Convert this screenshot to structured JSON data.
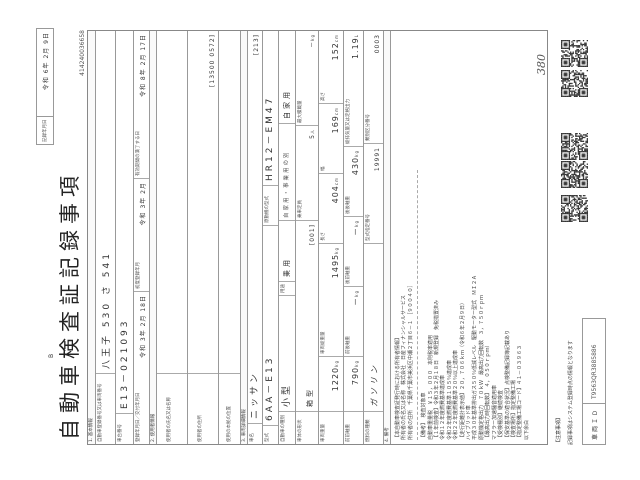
{
  "header": {
    "record_date_label": "記録年月日",
    "record_date": "令和 6年 2月 9日",
    "mark": "B",
    "title": "自動車検査証記録事項",
    "code": "414240036658"
  },
  "basic": {
    "section": "1. 基本情報",
    "reg_label": "自動車登録番号又は車両番号",
    "reg_value": "八王子 530 さ 541",
    "chassis_label": "車台番号",
    "chassis_value": "E13－021093",
    "reg_date_label": "登録年月日／交付年月日",
    "reg_date": "令和 3年 2月 18日",
    "first_reg_label": "初度登録年月",
    "first_reg": "令和 3年 2月",
    "expiry_label": "有効期間の満了する日",
    "expiry": "令和 8年 2月 17日"
  },
  "user": {
    "section": "2. 使用者情報",
    "name_label": "使用者の氏名又は名称",
    "address_label": "使用者の住所",
    "address_code": "[13500 0572]",
    "base_label": "使用の本拠の位置"
  },
  "vehicle": {
    "section": "3. 車両詳細情報",
    "maker_label": "車名",
    "maker": "ニッサン",
    "maker_code": "[213]",
    "model_label": "型式",
    "model": "6AA－E13",
    "engine_label": "原動機の型式",
    "engine": "HR12－EM47",
    "kind_label": "自動車の種別",
    "kind": "小型",
    "use_label": "用途",
    "use": "乗用",
    "private_label": "自家用・事業用の別",
    "private": "自家用",
    "body_label": "車体の形状",
    "body": "箱型",
    "body_code": "[001]",
    "capacity_label": "乗車定員",
    "capacity": "5",
    "capacity_unit": "人",
    "max_load_label": "最大積載量",
    "max_load": "－",
    "max_load_unit": "kg",
    "weight_label": "車両重量",
    "weight": "1220",
    "weight_unit": "kg",
    "gross_label": "車両総重量",
    "gross": "1495",
    "gross_unit": "kg",
    "length_label": "長さ",
    "length": "404",
    "length_unit": "cm",
    "width_label": "幅",
    "width": "169",
    "width_unit": "cm",
    "height_label": "高さ",
    "height": "152",
    "height_unit": "cm",
    "ff_axle_label": "前前軸重",
    "ff_axle": "790",
    "ff_axle_unit": "kg",
    "fr_axle_label": "前後軸重",
    "fr_axle": "－",
    "fr_axle_unit": "kg",
    "rf_axle_label": "後前軸重",
    "rf_axle": "－",
    "rf_axle_unit": "kg",
    "rr_axle_label": "後後軸重",
    "rr_axle": "430",
    "rr_axle_unit": "kg",
    "displacement_label": "総排気量又は定格出力",
    "displacement": "1.19",
    "displacement_unit": "L",
    "fuel_label": "燃料の種類",
    "fuel": "ガソリン",
    "type_no_label": "型式指定番号",
    "type_no": "19991",
    "class_no_label": "類別区分番号",
    "class_no": "0003"
  },
  "remarks": {
    "section": "4. 備考",
    "owner_lines": [
      "【本自動車検査証発行時における所有者情報】",
      "所有者の氏名又は名称　株式会社　日産フィナンシャルサービス",
      "所有者の住所　千葉県千葉市美浜区中瀬２丁目６－１　［９００４０］"
    ],
    "lines": [
      "【備考】　検査対象車",
      "自動車重量税　￥１５，０００　本則税率適用",
      "【１年前検査】令和３年２月１８日　新規登録　免税措置済み",
      "令和１２年度燃費基準達成車",
      "令和２年度燃費基準１０５％達成車",
      "令和２２年度燃費基準２０％以上達成車",
      "【走行距離計表示値】２０，７０６ｋｍ（令和６年２月９日）",
      "ハイブリッド車",
      "平成３０年基準排出ガス５０％低減レベル　駆動モーター型式　ＭＩ２Ａ",
      "原動機定格出力　７０ｋＷ　最高出力回転数　３，７５０ｒｐｍ",
      "【最高出力時回転数】　４，０５０ｒｐｍ）",
      "マフラー加速騒音適用車",
      "【受検種別】継続検査",
      "【保安基準の適合状況】点検整備記録簿記載あり",
      "【検査場所】指定整備工場",
      "【指定整備工場コード】４１－０３９６３",
      "以下余白"
    ]
  },
  "handwritten": "380",
  "footer": {
    "notice_heading": "【注意事項】",
    "notice": "記録事項はシステム登録時点の情報となります",
    "vehicle_id_label": "車両ＩＤ",
    "vehicle_id": "T9563QR3885886"
  }
}
